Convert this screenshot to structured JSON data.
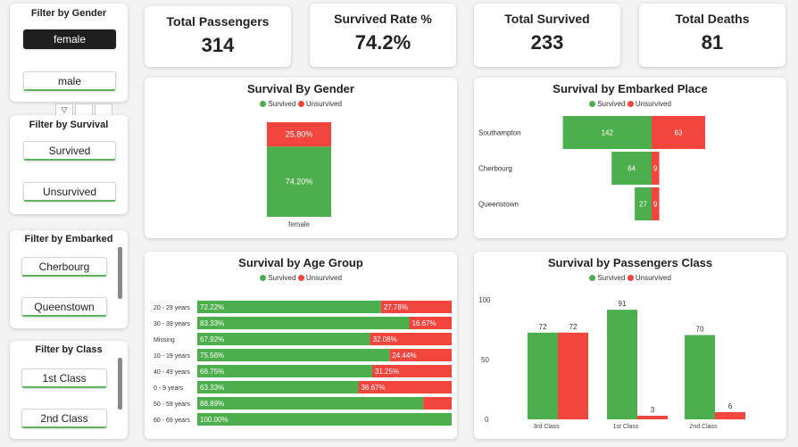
{
  "colors": {
    "survived": "#4cae4c",
    "unsurvived": "#f2453d"
  },
  "slicers": {
    "gender": {
      "title": "Filter by Gender",
      "options": [
        "female",
        "male"
      ],
      "selected": "female"
    },
    "survival": {
      "title": "Filter by Survival",
      "options": [
        "Survived",
        "Unsurvived"
      ]
    },
    "embarked": {
      "title": "Filter by Embarked",
      "options": [
        "Cherbourg",
        "Queenstown"
      ]
    },
    "class": {
      "title": "Filter by Class",
      "options": [
        "1st Class",
        "2nd Class"
      ]
    }
  },
  "kpis": [
    {
      "title": "Total Passengers",
      "value": "314"
    },
    {
      "title": "Survived Rate %",
      "value": "74.2%"
    },
    {
      "title": "Total Survived",
      "value": "233"
    },
    {
      "title": "Total Deaths",
      "value": "81"
    }
  ],
  "legend": {
    "survived": "Survived",
    "unsurvived": "Unsurvived"
  },
  "chart_data": [
    {
      "type": "bar",
      "title": "Survival By Gender",
      "categories": [
        "female"
      ],
      "stacked": "100%",
      "series": [
        {
          "name": "Survived",
          "values": [
            74.2
          ],
          "labels": [
            "74.20%"
          ]
        },
        {
          "name": "Unsurvived",
          "values": [
            25.8
          ],
          "labels": [
            "25.80%"
          ]
        }
      ]
    },
    {
      "type": "bar",
      "orientation": "horizontal",
      "title": "Survival by Embarked Place",
      "categories": [
        "Southampton",
        "Cherbourg",
        "Queenstown"
      ],
      "series": [
        {
          "name": "Survived",
          "values": [
            142,
            64,
            27
          ]
        },
        {
          "name": "Unsurvived",
          "values": [
            63,
            9,
            9
          ]
        }
      ]
    },
    {
      "type": "bar",
      "orientation": "horizontal",
      "stacked": "100%",
      "title": "Survival by Age Group",
      "categories": [
        "20 - 29 years",
        "30 - 39 years",
        "Missing",
        "10 - 19 years",
        "40 - 49 years",
        "0 - 9 years",
        "50 - 59 years",
        "60 - 69 years"
      ],
      "series": [
        {
          "name": "Survived",
          "values": [
            72.22,
            83.33,
            67.92,
            75.56,
            68.75,
            63.33,
            88.89,
            100.0
          ],
          "labels": [
            "72.22%",
            "83.33%",
            "67.92%",
            "75.56%",
            "68.75%",
            "63.33%",
            "88.89%",
            "100.00%"
          ]
        },
        {
          "name": "Unsurvived",
          "values": [
            27.78,
            16.67,
            32.08,
            24.44,
            31.25,
            36.67,
            11.11,
            0
          ],
          "labels": [
            "27.78%",
            "16.67%",
            "32.08%",
            "24.44%",
            "31.25%",
            "36.67%",
            "",
            ""
          ]
        }
      ]
    },
    {
      "type": "bar",
      "title": "Survival by Passengers Class",
      "categories": [
        "3rd Class",
        "1st Class",
        "2nd Class"
      ],
      "yticks": [
        "0",
        "50",
        "100"
      ],
      "ylim": [
        0,
        100
      ],
      "series": [
        {
          "name": "Survived",
          "values": [
            72,
            91,
            70
          ]
        },
        {
          "name": "Unsurvived",
          "values": [
            72,
            3,
            6
          ]
        }
      ]
    }
  ]
}
